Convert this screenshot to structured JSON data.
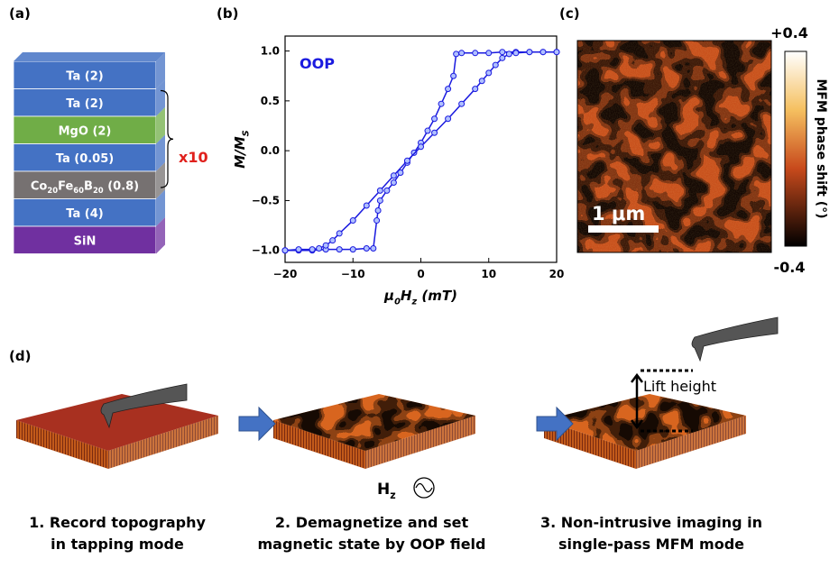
{
  "panel_a": {
    "label": "(a)",
    "repeat": "x10",
    "layers": [
      {
        "label": [
          "Ta (2)"
        ],
        "color": "#4472c4"
      },
      {
        "label": [
          "Ta (2)"
        ],
        "color": "#4472c4"
      },
      {
        "label": [
          "MgO (2)"
        ],
        "color": "#70ad47"
      },
      {
        "label": [
          "Ta (0.05)"
        ],
        "color": "#4472c4"
      },
      {
        "label": [
          "Co",
          "20",
          "Fe",
          "60",
          "B",
          "20",
          " (0.8)"
        ],
        "color": "#767171"
      },
      {
        "label": [
          "Ta (4)"
        ],
        "color": "#4472c4"
      },
      {
        "label": [
          "SiN"
        ],
        "color": "#7030a0"
      }
    ]
  },
  "chart_data": {
    "type": "line",
    "panel_label": "(b)",
    "annotation": "OOP",
    "color": "#1a1adf",
    "x_label": [
      "μ",
      "0",
      "H",
      "z",
      " (mT)"
    ],
    "y_label": [
      "M/M",
      "S"
    ],
    "xlim": [
      -20,
      20
    ],
    "ylim": [
      -1.12,
      1.15
    ],
    "xticks": [
      {
        "value": -20,
        "label": "−20"
      },
      {
        "value": -10,
        "label": "−10"
      },
      0,
      10,
      20
    ],
    "yticks": [
      {
        "value": -1,
        "label": "−1.0"
      },
      {
        "value": -0.5,
        "label": "−0.5"
      },
      {
        "value": 0,
        "label": "0.0"
      },
      {
        "value": 0.5,
        "label": "0.5"
      },
      {
        "value": 1,
        "label": "1.0"
      }
    ],
    "series": [
      {
        "x": [
          -20,
          -18,
          -16,
          -14,
          -12,
          -10,
          -8,
          -7,
          -6.5,
          -6.3,
          -6,
          -5,
          -4,
          -3,
          -2,
          -1,
          0,
          1,
          2,
          3,
          4,
          4.8,
          5.2,
          6,
          8,
          10,
          12,
          14,
          16,
          18,
          20
        ],
        "y": [
          -1,
          -1,
          -1,
          -0.99,
          -0.99,
          -0.99,
          -0.98,
          -0.98,
          -0.7,
          -0.6,
          -0.5,
          -0.4,
          -0.32,
          -0.22,
          -0.12,
          -0.02,
          0.08,
          0.2,
          0.32,
          0.47,
          0.62,
          0.75,
          0.97,
          0.98,
          0.98,
          0.98,
          0.99,
          0.99,
          0.99,
          0.99,
          0.99
        ]
      },
      {
        "x": [
          20,
          18,
          16,
          14,
          13,
          12,
          11,
          10,
          9,
          8,
          6,
          4,
          2,
          0,
          -2,
          -4,
          -6,
          -8,
          -10,
          -12,
          -13,
          -14,
          -15,
          -16,
          -18,
          -20
        ],
        "y": [
          0.99,
          0.99,
          0.99,
          0.98,
          0.97,
          0.93,
          0.86,
          0.78,
          0.7,
          0.62,
          0.47,
          0.32,
          0.18,
          0.04,
          -0.1,
          -0.25,
          -0.4,
          -0.55,
          -0.7,
          -0.83,
          -0.9,
          -0.95,
          -0.98,
          -0.99,
          -0.99,
          -1
        ]
      }
    ]
  },
  "panel_c": {
    "label": "(c)",
    "scale_bar": "1 μm",
    "colorbar": {
      "max_label": "+0.4",
      "min_label": "-0.4",
      "label": "MFM phase shift (°)"
    }
  },
  "panel_d": {
    "label": "(d)",
    "field_label": [
      "H",
      "z"
    ],
    "lift_label": "Lift height",
    "steps": [
      [
        "1. Record topography",
        "in tapping mode"
      ],
      [
        "2. Demagnetize and set",
        "magnetic state by OOP field"
      ],
      [
        "3. Non-intrusive imaging in",
        "single-pass MFM mode"
      ]
    ]
  }
}
